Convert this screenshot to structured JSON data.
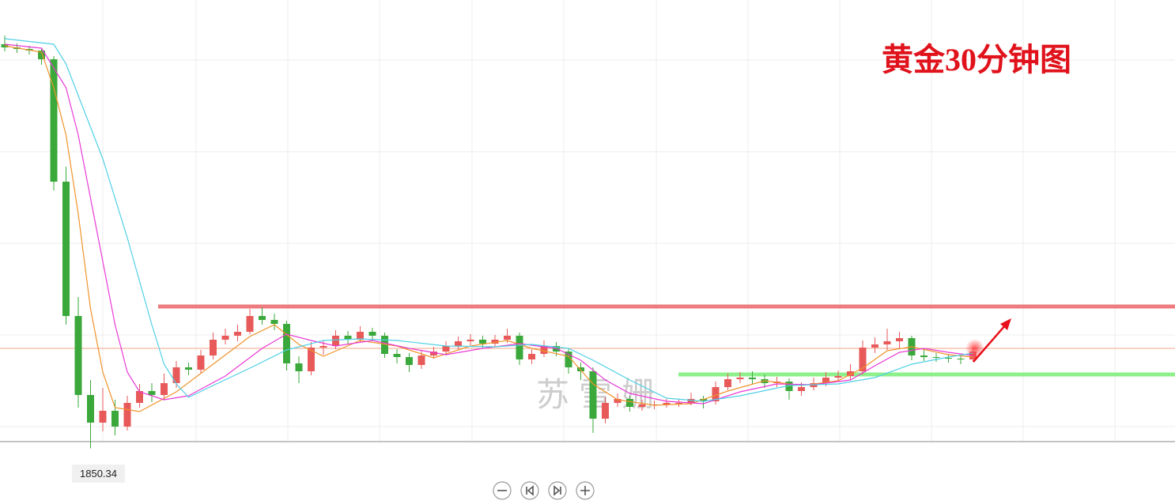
{
  "chart_data": {
    "type": "candlestick",
    "title": "黄金30分钟图",
    "watermark": "苏雪姗",
    "ylim": [
      1843.3,
      1907.1
    ],
    "series": [
      {
        "up_color": "#e8595a",
        "down_color": "#3aa83a",
        "open": [
          1901.5,
          1901.1,
          1900.9,
          1900.7,
          1899.6,
          1884.1,
          1867.1,
          1857.1,
          1853.6,
          1855.1,
          1853.1,
          1856.1,
          1857.6,
          1857.1,
          1858.6,
          1860.6,
          1860.3,
          1862.1,
          1864.1,
          1864.6,
          1865.1,
          1867.1,
          1866.6,
          1866.1,
          1861.1,
          1860.1,
          1863.1,
          1863.3,
          1864.6,
          1864.1,
          1865.1,
          1864.6,
          1862.3,
          1861.9,
          1860.9,
          1862.1,
          1862.6,
          1863.3,
          1863.9,
          1864.1,
          1863.6,
          1864.1,
          1864.6,
          1861.6,
          1862.3,
          1863.3,
          1862.6,
          1860.6,
          1860.1,
          1854.1,
          1856.1,
          1856.6,
          1855.6,
          1855.9,
          1855.9,
          1856.1,
          1856.1,
          1856.6,
          1856.3,
          1858.1,
          1859.1,
          1859.3,
          1859.1,
          1858.6,
          1858.8,
          1857.6,
          1858.1,
          1858.6,
          1859.3,
          1859.5,
          1860.1,
          1863.1,
          1863.5,
          1863.9,
          1864.3,
          1862.1,
          1861.9,
          1861.8,
          1861.7,
          1861.6
        ],
        "high": [
          1902.6,
          1901.6,
          1901.3,
          1901.0,
          1900.0,
          1886.0,
          1869.5,
          1859.0,
          1858.0,
          1856.5,
          1857.0,
          1858.5,
          1858.6,
          1859.8,
          1861.4,
          1861.2,
          1862.8,
          1865.0,
          1865.5,
          1866.0,
          1868.0,
          1868.2,
          1867.4,
          1866.5,
          1862.0,
          1863.8,
          1864.0,
          1865.3,
          1865.2,
          1865.8,
          1865.6,
          1865.0,
          1862.9,
          1862.4,
          1862.7,
          1863.2,
          1863.9,
          1864.5,
          1864.8,
          1864.6,
          1864.7,
          1865.5,
          1865.0,
          1862.9,
          1864.0,
          1863.8,
          1863.0,
          1861.2,
          1860.6,
          1856.8,
          1857.3,
          1857.0,
          1856.5,
          1856.4,
          1856.6,
          1856.5,
          1857.4,
          1857.0,
          1858.8,
          1859.8,
          1860.0,
          1860.1,
          1859.7,
          1859.4,
          1859.2,
          1858.7,
          1859.3,
          1860.0,
          1860.2,
          1861.0,
          1864.0,
          1864.4,
          1865.5,
          1865.1,
          1864.6,
          1862.8,
          1862.4,
          1862.3,
          1862.1,
          1863.2
        ],
        "low": [
          1900.6,
          1900.4,
          1900.2,
          1898.9,
          1883.0,
          1866.0,
          1855.5,
          1850.34,
          1852.5,
          1852.0,
          1852.6,
          1855.5,
          1856.2,
          1856.4,
          1858.0,
          1859.6,
          1859.9,
          1861.6,
          1863.5,
          1863.9,
          1864.8,
          1866.0,
          1865.3,
          1860.2,
          1858.6,
          1859.6,
          1862.2,
          1862.9,
          1863.5,
          1863.7,
          1864.0,
          1861.8,
          1861.1,
          1860.0,
          1860.4,
          1861.7,
          1862.1,
          1862.9,
          1863.4,
          1863.0,
          1863.2,
          1863.7,
          1860.9,
          1861.0,
          1861.9,
          1862.0,
          1859.8,
          1859.0,
          1852.3,
          1853.5,
          1855.6,
          1855.0,
          1855.1,
          1855.3,
          1855.5,
          1855.6,
          1855.8,
          1855.4,
          1855.9,
          1857.7,
          1858.6,
          1858.5,
          1858.0,
          1858.1,
          1856.5,
          1857.0,
          1857.7,
          1858.2,
          1858.8,
          1859.0,
          1859.7,
          1862.4,
          1862.8,
          1863.0,
          1861.5,
          1861.4,
          1861.3,
          1861.2,
          1861.0,
          1861.3
        ],
        "close": [
          1901.1,
          1900.9,
          1900.7,
          1899.6,
          1884.1,
          1867.1,
          1857.1,
          1853.6,
          1855.1,
          1853.1,
          1856.1,
          1857.6,
          1857.1,
          1858.6,
          1860.6,
          1860.3,
          1862.1,
          1864.1,
          1864.6,
          1865.1,
          1867.1,
          1866.6,
          1866.1,
          1861.1,
          1860.1,
          1863.1,
          1863.3,
          1864.6,
          1864.1,
          1865.1,
          1864.6,
          1862.3,
          1861.9,
          1860.9,
          1862.1,
          1862.6,
          1863.3,
          1863.9,
          1864.1,
          1863.6,
          1864.1,
          1864.6,
          1861.6,
          1862.3,
          1863.3,
          1862.6,
          1860.6,
          1860.1,
          1854.1,
          1856.1,
          1856.6,
          1855.6,
          1855.9,
          1855.9,
          1856.1,
          1856.1,
          1856.6,
          1856.3,
          1858.1,
          1859.1,
          1859.3,
          1859.1,
          1858.6,
          1858.8,
          1857.6,
          1858.1,
          1858.6,
          1859.3,
          1859.5,
          1860.1,
          1863.1,
          1863.5,
          1863.9,
          1864.3,
          1862.1,
          1861.9,
          1861.8,
          1861.7,
          1861.6,
          1862.6
        ]
      }
    ],
    "moving_averages": [
      {
        "color": "#f0932b",
        "x": [
          0,
          3,
          4,
          5,
          6,
          7,
          8,
          9,
          11,
          14,
          17,
          20,
          22,
          24,
          26,
          29,
          32,
          35,
          38,
          41,
          43,
          46,
          48,
          50,
          53,
          56,
          59,
          62,
          65,
          68,
          70,
          72,
          74,
          77,
          79
        ],
        "values": [
          1901.3,
          1900.5,
          1896,
          1890,
          1880,
          1868,
          1860,
          1855.5,
          1855,
          1857.5,
          1861,
          1864.5,
          1866,
          1863.5,
          1862,
          1864,
          1863.3,
          1861.8,
          1863.3,
          1864,
          1863,
          1862,
          1858.5,
          1856.5,
          1855.8,
          1856,
          1857.6,
          1858.9,
          1858.3,
          1858.9,
          1860.5,
          1862.7,
          1863.2,
          1862.2,
          1861.9
        ]
      },
      {
        "color": "#e83ad6",
        "x": [
          0,
          3,
          5,
          6,
          7,
          8,
          9,
          10,
          11,
          13,
          15,
          18,
          21,
          23,
          25,
          27,
          30,
          33,
          36,
          39,
          42,
          45,
          47,
          49,
          51,
          54,
          57,
          60,
          63,
          66,
          69,
          71,
          73,
          75,
          77,
          79
        ],
        "values": [
          1901.5,
          1901,
          1896,
          1890,
          1882,
          1874,
          1866,
          1860,
          1857.5,
          1856.5,
          1857,
          1859.5,
          1863,
          1864.8,
          1864,
          1863.3,
          1864,
          1863,
          1862.2,
          1863,
          1863.6,
          1863,
          1861.5,
          1859,
          1857.3,
          1856.3,
          1856,
          1857.5,
          1858.5,
          1858.4,
          1859,
          1860.8,
          1862.5,
          1863,
          1862.5,
          1862.1
        ]
      },
      {
        "color": "#4fd0e6",
        "x": [
          0,
          4,
          5,
          6,
          8,
          10,
          12,
          13,
          14,
          15,
          17,
          20,
          23,
          26,
          29,
          32,
          36,
          40,
          43,
          46,
          48,
          51,
          54,
          57,
          60,
          64,
          68,
          71,
          74,
          77,
          79
        ],
        "values": [
          1902.2,
          1901.5,
          1899,
          1895,
          1887,
          1877,
          1866,
          1861,
          1858.5,
          1856.8,
          1858.3,
          1860.5,
          1862.8,
          1864,
          1864.2,
          1864,
          1863.3,
          1863.2,
          1863.5,
          1863,
          1861.5,
          1859,
          1856.7,
          1856.3,
          1857,
          1858.3,
          1858.5,
          1859.3,
          1861,
          1861.9,
          1862.4
        ]
      }
    ],
    "levels": [
      {
        "value": 1868.3,
        "color": "#ee7b7e"
      },
      {
        "value": 1859.7,
        "color": "#8ef08a"
      }
    ],
    "price_line": {
      "value": 1863.0,
      "color": "#f4a58a"
    }
  }
}
